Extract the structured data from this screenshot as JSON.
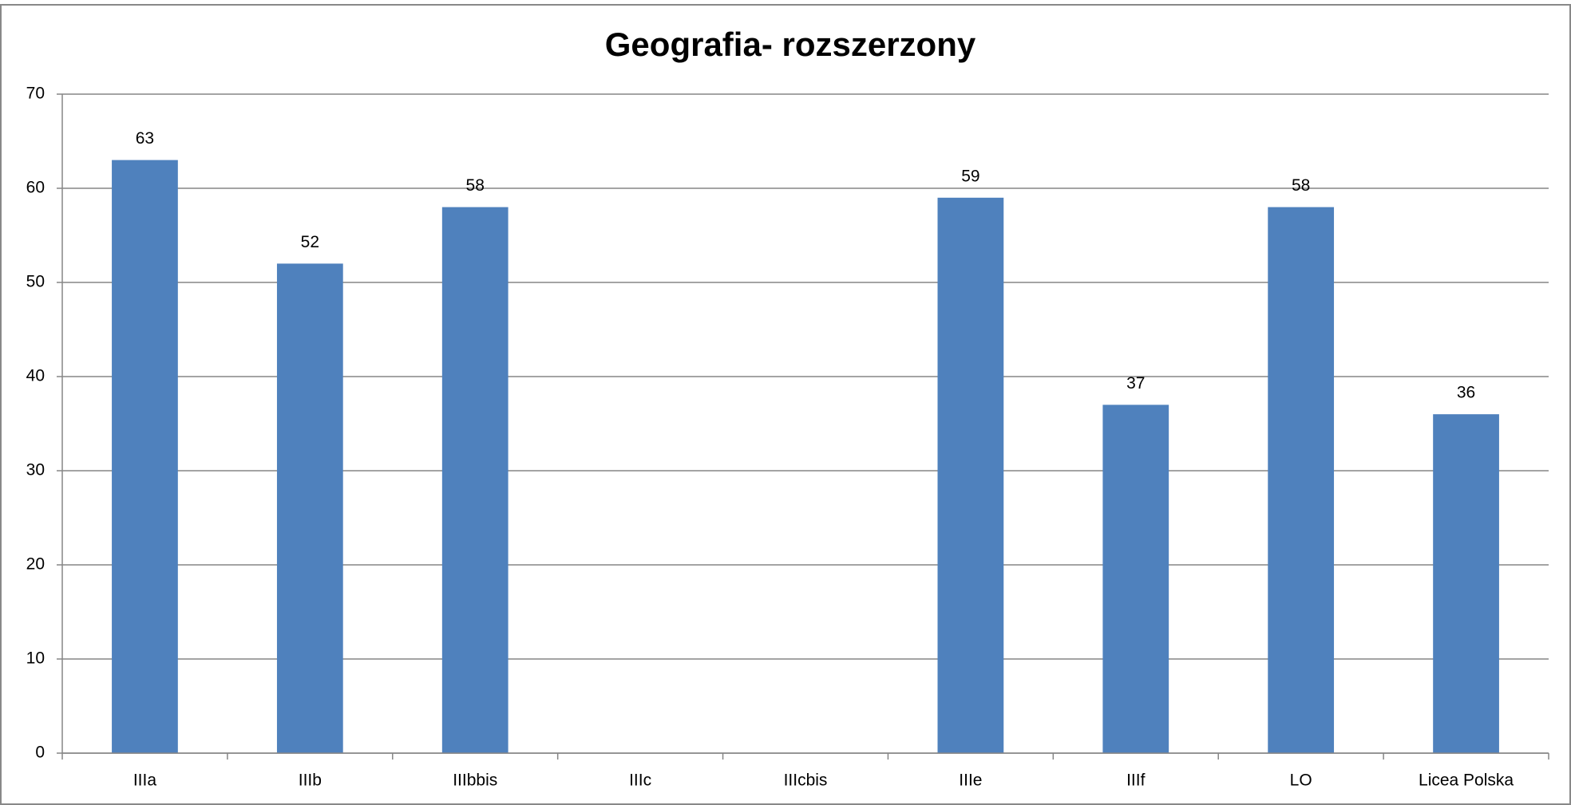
{
  "chart_data": {
    "type": "bar",
    "title": "Geografia- rozszerzony",
    "categories": [
      "IIIa",
      "IIIb",
      "IIIbbis",
      "IIIc",
      "IIIcbis",
      "IIIe",
      "IIIf",
      "LO",
      "Licea Polska"
    ],
    "values": [
      63,
      52,
      58,
      null,
      null,
      59,
      37,
      58,
      36
    ],
    "color": "#4f81bd",
    "ylim": [
      0,
      70
    ],
    "yticks": [
      0,
      10,
      20,
      30,
      40,
      50,
      60,
      70
    ],
    "grid": true
  }
}
